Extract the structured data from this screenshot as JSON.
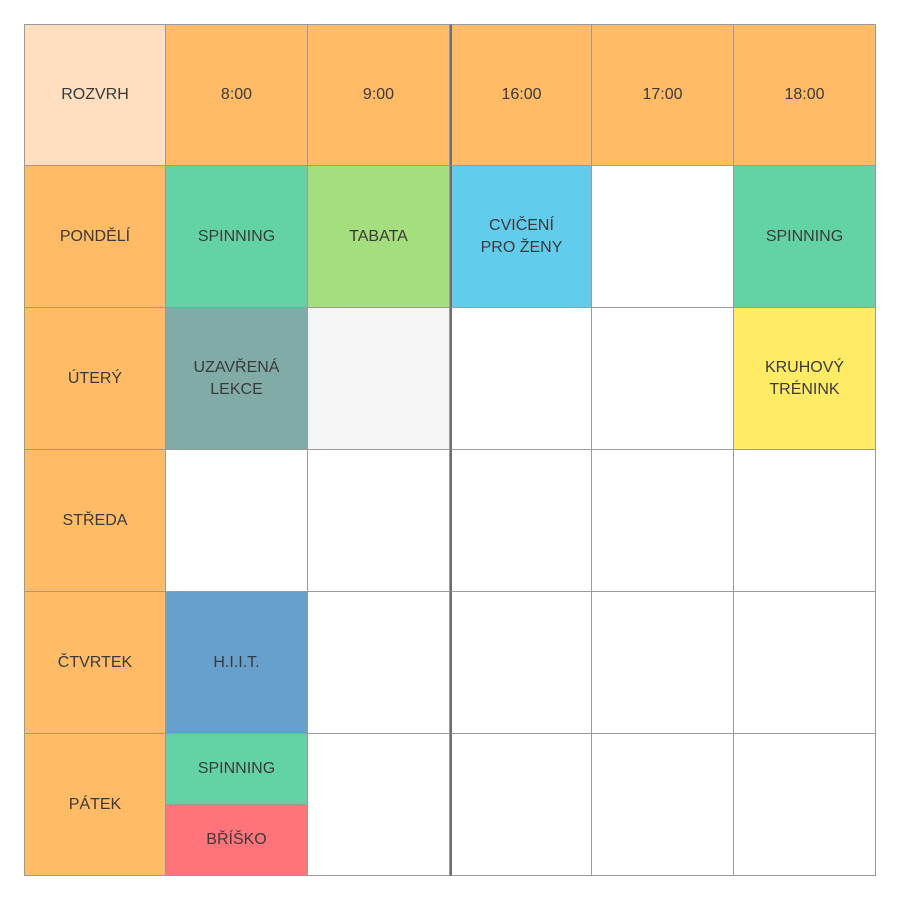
{
  "corner_label": "ROZVRH",
  "times": [
    "8:00",
    "9:00",
    "16:00",
    "17:00",
    "18:00"
  ],
  "days": [
    "PONDĚLÍ",
    "ÚTERÝ",
    "STŘEDA",
    "ČTVRTEK",
    "PÁTEK"
  ],
  "colors": {
    "header": "#ffbb66",
    "corner": "#ffdfbf",
    "spinning": "#63d3a6",
    "tabata": "#a5de7d",
    "cviceni": "#62cced",
    "uzavrena": "#80aba7",
    "light_gray": "#f5f5f5",
    "kruhovy": "#ffeb66",
    "hiit": "#679fcd",
    "brisko": "#ff737a"
  },
  "classes": {
    "mon_8": {
      "label": "SPINNING",
      "color": "#63d3a6"
    },
    "mon_9": {
      "label": "TABATA",
      "color": "#a5de7d"
    },
    "mon_16": {
      "label": "CVIČENÍ\nPRO ŽENY",
      "color": "#62cced"
    },
    "mon_17": {
      "label": "",
      "color": "#ffffff"
    },
    "mon_18": {
      "label": "SPINNING",
      "color": "#63d3a6"
    },
    "tue_8": {
      "label": "UZAVŘENÁ\nLEKCE",
      "color": "#80aba7"
    },
    "tue_9": {
      "label": "",
      "color": "#f5f5f5"
    },
    "tue_16": {
      "label": "",
      "color": "#ffffff"
    },
    "tue_17": {
      "label": "",
      "color": "#ffffff"
    },
    "tue_18": {
      "label": "KRUHOVÝ\nTRÉNINK",
      "color": "#ffeb66"
    },
    "thu_8": {
      "label": "H.I.I.T.",
      "color": "#679fcd"
    },
    "fri_8_top": {
      "label": "SPINNING",
      "color": "#63d3a6"
    },
    "fri_8_bottom": {
      "label": "BŘÍŠKO",
      "color": "#ff737a"
    }
  }
}
